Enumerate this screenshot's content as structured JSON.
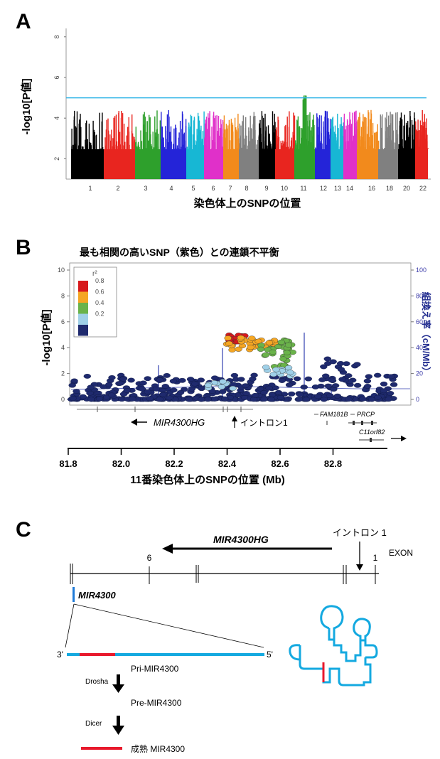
{
  "panel_a": {
    "label": "A",
    "ylabel": "-log10[P値]",
    "xlabel": "染色体上のSNPの位置",
    "yticks": [
      "2",
      "4",
      "6",
      "8"
    ],
    "chromosomes": [
      "1",
      "2",
      "3",
      "4",
      "5",
      "6",
      "7",
      "8",
      "9",
      "10",
      "11",
      "12",
      "13",
      "14",
      "16",
      "18",
      "20",
      "22"
    ],
    "colors": {
      "c1": "#000000",
      "c2": "#e8251f",
      "c3": "#2ea02c",
      "c4": "#2424d8",
      "c5": "#17b7d4",
      "c6": "#e030c9",
      "c7": "#f28a1c",
      "c8": "#808080",
      "threshold": "#35b6e8"
    },
    "threshold_value": 5
  },
  "panel_b": {
    "label": "B",
    "title": "最も相関の高いSNP（紫色）との連鎖不平衡",
    "ylabel": "-log10[P値]",
    "ylabel_right": "組換え率（cM/Mb）",
    "yticks_left": [
      "0",
      "2",
      "4",
      "6",
      "8",
      "10"
    ],
    "yticks_right": [
      "0",
      "20",
      "40",
      "60",
      "80",
      "100"
    ],
    "legend_title": "r²",
    "legend_items": [
      {
        "label": "0.8",
        "color": "#d7191c"
      },
      {
        "label": "0.6",
        "color": "#f5a623"
      },
      {
        "label": "0.4",
        "color": "#6ab34a"
      },
      {
        "label": "0.2",
        "color": "#9fd0e8"
      },
      {
        "label": "",
        "color": "#1f2a6e"
      }
    ],
    "genes": {
      "mir4300hg": "MIR4300HG",
      "intron": "イントロン1",
      "fam181b": "FAM181B",
      "prcp": "PRCP",
      "c11orf82": "C11orf82"
    },
    "xticks": [
      "81.8",
      "82.0",
      "82.2",
      "82.4",
      "82.6",
      "82.8"
    ],
    "xlabel": "11番染色体上のSNPの位置 (Mb)"
  },
  "panel_c": {
    "label": "C",
    "gene": "MIR4300HG",
    "intron": "イントロン 1",
    "exon": "EXON",
    "exon6": "6",
    "exon1": "1",
    "mirna": "MIR4300",
    "end3": "3'",
    "end5": "5'",
    "pri": "Pri-MIR4300",
    "drosha": "Drosha",
    "pre": "Pre-MIR4300",
    "dicer": "Dicer",
    "mature": "成熟 MIR4300",
    "colors": {
      "rna": "#14a9e0",
      "mature": "#e8192c",
      "axis": "#1f2a6e"
    }
  }
}
